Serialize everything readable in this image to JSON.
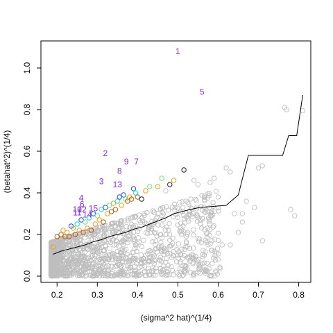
{
  "chart_data": {
    "type": "scatter",
    "xlabel": "(sigma^2 hat)^(1/4)",
    "ylabel": "(betahat^2)^(1/4)",
    "xlim": [
      0.16,
      0.83
    ],
    "ylim": [
      -0.03,
      1.13
    ],
    "x_ticks": [
      0.2,
      0.3,
      0.4,
      0.5,
      0.6,
      0.7,
      0.8
    ],
    "y_ticks": [
      0.0,
      0.2,
      0.4,
      0.6,
      0.8,
      1.0
    ],
    "x_tick_labels": [
      "0.2",
      "0.3",
      "0.4",
      "0.5",
      "0.6",
      "0.7",
      "0.8"
    ],
    "y_tick_labels": [
      "0.0",
      "0.2",
      "0.4",
      "0.6",
      "0.8",
      "1.0"
    ],
    "colors": {
      "background_points": "#bebebe",
      "blue": "#1f4fd8",
      "cyan": "#00e5ee",
      "green": "#6fe08a",
      "orange": "#f0a020",
      "dark_orange": "#b06010",
      "black": "#202020",
      "labels": "#8a2be2",
      "threshold_line": "#000000"
    },
    "threshold_line": [
      [
        0.19,
        0.105
      ],
      [
        0.21,
        0.12
      ],
      [
        0.23,
        0.13
      ],
      [
        0.25,
        0.14
      ],
      [
        0.27,
        0.15
      ],
      [
        0.29,
        0.165
      ],
      [
        0.31,
        0.175
      ],
      [
        0.33,
        0.19
      ],
      [
        0.35,
        0.2
      ],
      [
        0.37,
        0.21
      ],
      [
        0.39,
        0.225
      ],
      [
        0.41,
        0.235
      ],
      [
        0.43,
        0.25
      ],
      [
        0.45,
        0.265
      ],
      [
        0.47,
        0.28
      ],
      [
        0.49,
        0.3
      ],
      [
        0.51,
        0.31
      ],
      [
        0.53,
        0.32
      ],
      [
        0.555,
        0.33
      ],
      [
        0.62,
        0.34
      ],
      [
        0.65,
        0.39
      ],
      [
        0.675,
        0.58
      ],
      [
        0.76,
        0.58
      ],
      [
        0.775,
        0.675
      ],
      [
        0.795,
        0.675
      ],
      [
        0.81,
        0.87
      ]
    ],
    "highlighted_points": [
      {
        "x": 0.19,
        "y": 0.14,
        "color": "orange"
      },
      {
        "x": 0.2,
        "y": 0.19,
        "color": "dark_orange"
      },
      {
        "x": 0.21,
        "y": 0.2,
        "color": "dark_orange"
      },
      {
        "x": 0.215,
        "y": 0.22,
        "color": "orange"
      },
      {
        "x": 0.22,
        "y": 0.19,
        "color": "dark_orange"
      },
      {
        "x": 0.225,
        "y": 0.21,
        "color": "orange"
      },
      {
        "x": 0.23,
        "y": 0.19,
        "color": "dark_orange"
      },
      {
        "x": 0.235,
        "y": 0.24,
        "color": "blue"
      },
      {
        "x": 0.24,
        "y": 0.23,
        "color": "orange"
      },
      {
        "x": 0.245,
        "y": 0.2,
        "color": "dark_orange"
      },
      {
        "x": 0.25,
        "y": 0.25,
        "color": "cyan"
      },
      {
        "x": 0.255,
        "y": 0.22,
        "color": "orange"
      },
      {
        "x": 0.26,
        "y": 0.27,
        "color": "blue"
      },
      {
        "x": 0.265,
        "y": 0.21,
        "color": "dark_orange"
      },
      {
        "x": 0.27,
        "y": 0.26,
        "color": "green"
      },
      {
        "x": 0.275,
        "y": 0.23,
        "color": "orange"
      },
      {
        "x": 0.28,
        "y": 0.28,
        "color": "cyan"
      },
      {
        "x": 0.285,
        "y": 0.22,
        "color": "dark_orange"
      },
      {
        "x": 0.29,
        "y": 0.3,
        "color": "blue"
      },
      {
        "x": 0.295,
        "y": 0.25,
        "color": "orange"
      },
      {
        "x": 0.3,
        "y": 0.29,
        "color": "green"
      },
      {
        "x": 0.305,
        "y": 0.27,
        "color": "orange"
      },
      {
        "x": 0.31,
        "y": 0.32,
        "color": "cyan"
      },
      {
        "x": 0.315,
        "y": 0.26,
        "color": "dark_orange"
      },
      {
        "x": 0.32,
        "y": 0.33,
        "color": "blue"
      },
      {
        "x": 0.325,
        "y": 0.3,
        "color": "orange"
      },
      {
        "x": 0.33,
        "y": 0.34,
        "color": "green"
      },
      {
        "x": 0.335,
        "y": 0.31,
        "color": "dark_orange"
      },
      {
        "x": 0.34,
        "y": 0.35,
        "color": "orange"
      },
      {
        "x": 0.345,
        "y": 0.32,
        "color": "dark_orange"
      },
      {
        "x": 0.35,
        "y": 0.36,
        "color": "cyan"
      },
      {
        "x": 0.355,
        "y": 0.38,
        "color": "blue"
      },
      {
        "x": 0.36,
        "y": 0.34,
        "color": "orange"
      },
      {
        "x": 0.365,
        "y": 0.39,
        "color": "blue"
      },
      {
        "x": 0.37,
        "y": 0.37,
        "color": "green"
      },
      {
        "x": 0.375,
        "y": 0.36,
        "color": "dark_orange"
      },
      {
        "x": 0.38,
        "y": 0.38,
        "color": "orange"
      },
      {
        "x": 0.385,
        "y": 0.37,
        "color": "dark_orange"
      },
      {
        "x": 0.39,
        "y": 0.42,
        "color": "blue"
      },
      {
        "x": 0.395,
        "y": 0.4,
        "color": "cyan"
      },
      {
        "x": 0.4,
        "y": 0.38,
        "color": "dark_orange"
      },
      {
        "x": 0.41,
        "y": 0.37,
        "color": "black"
      },
      {
        "x": 0.42,
        "y": 0.41,
        "color": "orange"
      },
      {
        "x": 0.43,
        "y": 0.43,
        "color": "green"
      },
      {
        "x": 0.45,
        "y": 0.43,
        "color": "orange"
      },
      {
        "x": 0.46,
        "y": 0.47,
        "color": "green"
      },
      {
        "x": 0.48,
        "y": 0.44,
        "color": "black"
      },
      {
        "x": 0.49,
        "y": 0.46,
        "color": "orange"
      },
      {
        "x": 0.515,
        "y": 0.51,
        "color": "black"
      }
    ],
    "labels": [
      {
        "text": "1",
        "x": 0.5,
        "y": 1.08
      },
      {
        "text": "5",
        "x": 0.56,
        "y": 0.885
      },
      {
        "text": "2",
        "x": 0.32,
        "y": 0.59
      },
      {
        "text": "9",
        "x": 0.372,
        "y": 0.55
      },
      {
        "text": "7",
        "x": 0.397,
        "y": 0.55
      },
      {
        "text": "8",
        "x": 0.355,
        "y": 0.505
      },
      {
        "text": "3",
        "x": 0.31,
        "y": 0.455
      },
      {
        "text": "13",
        "x": 0.35,
        "y": 0.44
      },
      {
        "text": "4",
        "x": 0.26,
        "y": 0.375
      },
      {
        "text": "6",
        "x": 0.262,
        "y": 0.345
      },
      {
        "text": "10",
        "x": 0.25,
        "y": 0.32
      },
      {
        "text": "12",
        "x": 0.262,
        "y": 0.32
      },
      {
        "text": "15",
        "x": 0.29,
        "y": 0.325
      },
      {
        "text": "11",
        "x": 0.25,
        "y": 0.305
      },
      {
        "text": "14",
        "x": 0.275,
        "y": 0.295
      }
    ],
    "grey_outliers": [
      [
        0.765,
        0.81
      ],
      [
        0.77,
        0.8
      ],
      [
        0.81,
        0.795
      ],
      [
        0.7,
        0.52
      ],
      [
        0.71,
        0.53
      ],
      [
        0.62,
        0.52
      ],
      [
        0.63,
        0.5
      ],
      [
        0.59,
        0.47
      ],
      [
        0.6,
        0.38
      ],
      [
        0.67,
        0.36
      ],
      [
        0.69,
        0.33
      ],
      [
        0.66,
        0.3
      ],
      [
        0.58,
        0.45
      ],
      [
        0.55,
        0.44
      ],
      [
        0.54,
        0.46
      ],
      [
        0.52,
        0.36
      ],
      [
        0.57,
        0.32
      ],
      [
        0.47,
        0.41
      ],
      [
        0.64,
        0.3
      ],
      [
        0.66,
        0.26
      ],
      [
        0.65,
        0.21
      ],
      [
        0.71,
        0.17
      ],
      [
        0.78,
        0.32
      ],
      [
        0.79,
        0.29
      ],
      [
        0.61,
        0.15
      ],
      [
        0.63,
        0.15
      ],
      [
        0.6,
        0.08
      ],
      [
        0.56,
        0.06
      ],
      [
        0.5,
        0.1
      ],
      [
        0.52,
        0.05
      ]
    ]
  }
}
